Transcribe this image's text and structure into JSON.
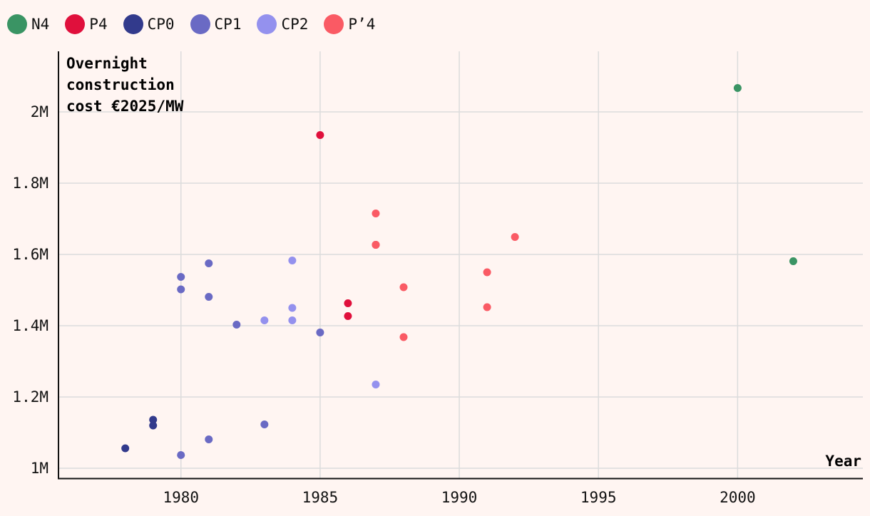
{
  "chart_data": {
    "type": "scatter",
    "title": "",
    "xlabel": "Year",
    "ylabel_lines": [
      "Overnight",
      "construction",
      "cost €2025/MW"
    ],
    "xlim": [
      1975.6,
      2004.5
    ],
    "ylim": [
      970000,
      2170000
    ],
    "x_ticks": [
      {
        "value": 1980,
        "label": "1980"
      },
      {
        "value": 1985,
        "label": "1985"
      },
      {
        "value": 1990,
        "label": "1990"
      },
      {
        "value": 1995,
        "label": "1995"
      },
      {
        "value": 2000,
        "label": "2000"
      }
    ],
    "y_ticks": [
      {
        "value": 1000000,
        "label": "1M"
      },
      {
        "value": 1200000,
        "label": "1.2M"
      },
      {
        "value": 1400000,
        "label": "1.4M"
      },
      {
        "value": 1600000,
        "label": "1.6M"
      },
      {
        "value": 1800000,
        "label": "1.8M"
      },
      {
        "value": 2000000,
        "label": "2M"
      }
    ],
    "grid": true,
    "legend_position": "top-left",
    "series": [
      {
        "name": "N4",
        "color": "#3a9464",
        "points": [
          {
            "x": 2000,
            "y": 2067000
          },
          {
            "x": 2002,
            "y": 1581000
          }
        ]
      },
      {
        "name": "P4",
        "color": "#e0103c",
        "points": [
          {
            "x": 1985,
            "y": 1935000
          },
          {
            "x": 1987,
            "y": 1627000
          },
          {
            "x": 1986,
            "y": 1463000
          },
          {
            "x": 1986,
            "y": 1427000
          }
        ]
      },
      {
        "name": "CP0",
        "color": "#323a8c",
        "points": [
          {
            "x": 1978,
            "y": 1056000
          },
          {
            "x": 1979,
            "y": 1136000
          },
          {
            "x": 1979,
            "y": 1120000
          }
        ]
      },
      {
        "name": "CP1",
        "color": "#6a6ac4",
        "points": [
          {
            "x": 1980,
            "y": 1537000
          },
          {
            "x": 1980,
            "y": 1502000
          },
          {
            "x": 1981,
            "y": 1575000
          },
          {
            "x": 1981,
            "y": 1481000
          },
          {
            "x": 1982,
            "y": 1403000
          },
          {
            "x": 1985,
            "y": 1381000
          },
          {
            "x": 1983,
            "y": 1123000
          },
          {
            "x": 1981,
            "y": 1081000
          },
          {
            "x": 1980,
            "y": 1037000
          }
        ]
      },
      {
        "name": "CP2",
        "color": "#9491ee",
        "points": [
          {
            "x": 1984,
            "y": 1583000
          },
          {
            "x": 1984,
            "y": 1450000
          },
          {
            "x": 1984,
            "y": 1415000
          },
          {
            "x": 1983,
            "y": 1415000
          },
          {
            "x": 1987,
            "y": 1235000
          }
        ]
      },
      {
        "name": "P’4",
        "color": "#fa5a64",
        "points": [
          {
            "x": 1987,
            "y": 1715000
          },
          {
            "x": 1987,
            "y": 1627000
          },
          {
            "x": 1988,
            "y": 1508000
          },
          {
            "x": 1988,
            "y": 1368000
          },
          {
            "x": 1991,
            "y": 1550000
          },
          {
            "x": 1991,
            "y": 1452000
          },
          {
            "x": 1992,
            "y": 1649000
          }
        ]
      }
    ]
  }
}
